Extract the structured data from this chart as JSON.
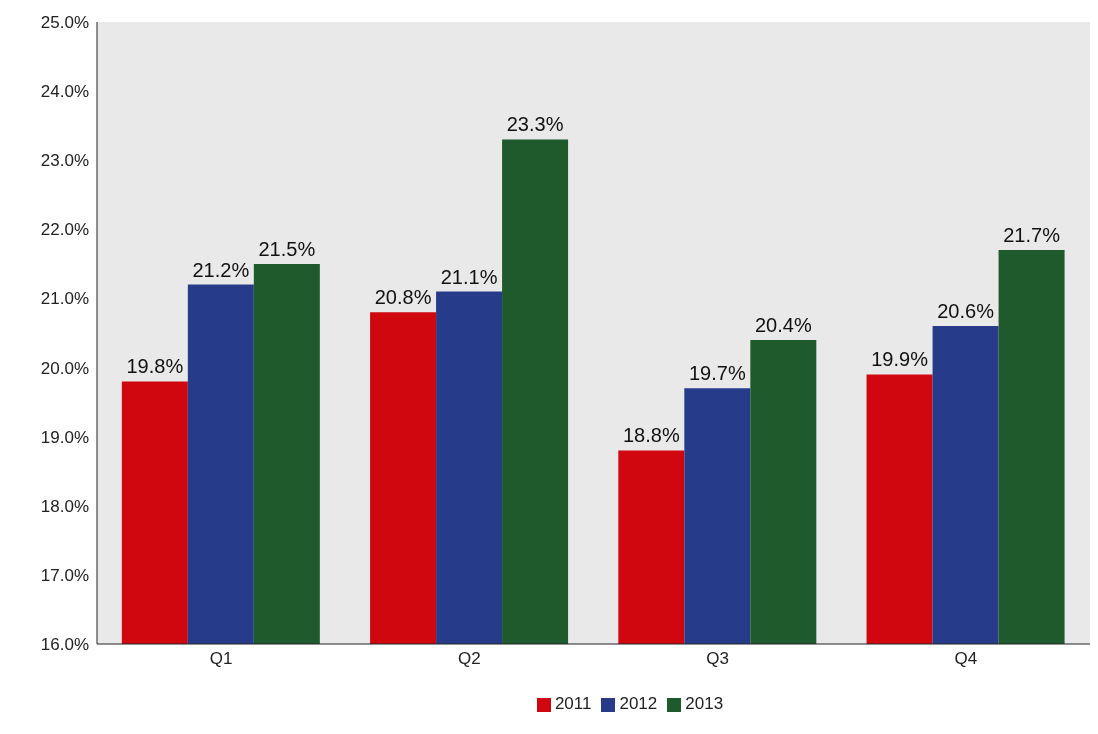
{
  "chart_data": {
    "type": "bar",
    "categories": [
      "Q1",
      "Q2",
      "Q3",
      "Q4"
    ],
    "series": [
      {
        "name": "2011",
        "color": "#d0070f",
        "values": [
          19.8,
          20.8,
          18.8,
          19.9
        ],
        "value_labels": [
          "19.8%",
          "20.8%",
          "18.8%",
          "19.9%"
        ]
      },
      {
        "name": "2012",
        "color": "#263c8a",
        "values": [
          21.2,
          21.1,
          19.7,
          20.6
        ],
        "value_labels": [
          "21.2%",
          "21.1%",
          "19.7%",
          "20.6%"
        ]
      },
      {
        "name": "2013",
        "color": "#1e5a2c",
        "values": [
          21.5,
          23.3,
          20.4,
          21.7
        ],
        "value_labels": [
          "21.5%",
          "23.3%",
          "20.4%",
          "21.7%"
        ]
      }
    ],
    "ylim": [
      16,
      25
    ],
    "yticks": [
      {
        "value": 16,
        "label": "16.0%"
      },
      {
        "value": 17,
        "label": "17.0%"
      },
      {
        "value": 18,
        "label": "18.0%"
      },
      {
        "value": 19,
        "label": "19.0%"
      },
      {
        "value": 20,
        "label": "20.0%"
      },
      {
        "value": 21,
        "label": "21.0%"
      },
      {
        "value": 22,
        "label": "22.0%"
      },
      {
        "value": 23,
        "label": "23.0%"
      },
      {
        "value": 24,
        "label": "24.0%"
      },
      {
        "value": 25,
        "label": "25.0%"
      }
    ],
    "grid": false,
    "legend": "bottom"
  }
}
